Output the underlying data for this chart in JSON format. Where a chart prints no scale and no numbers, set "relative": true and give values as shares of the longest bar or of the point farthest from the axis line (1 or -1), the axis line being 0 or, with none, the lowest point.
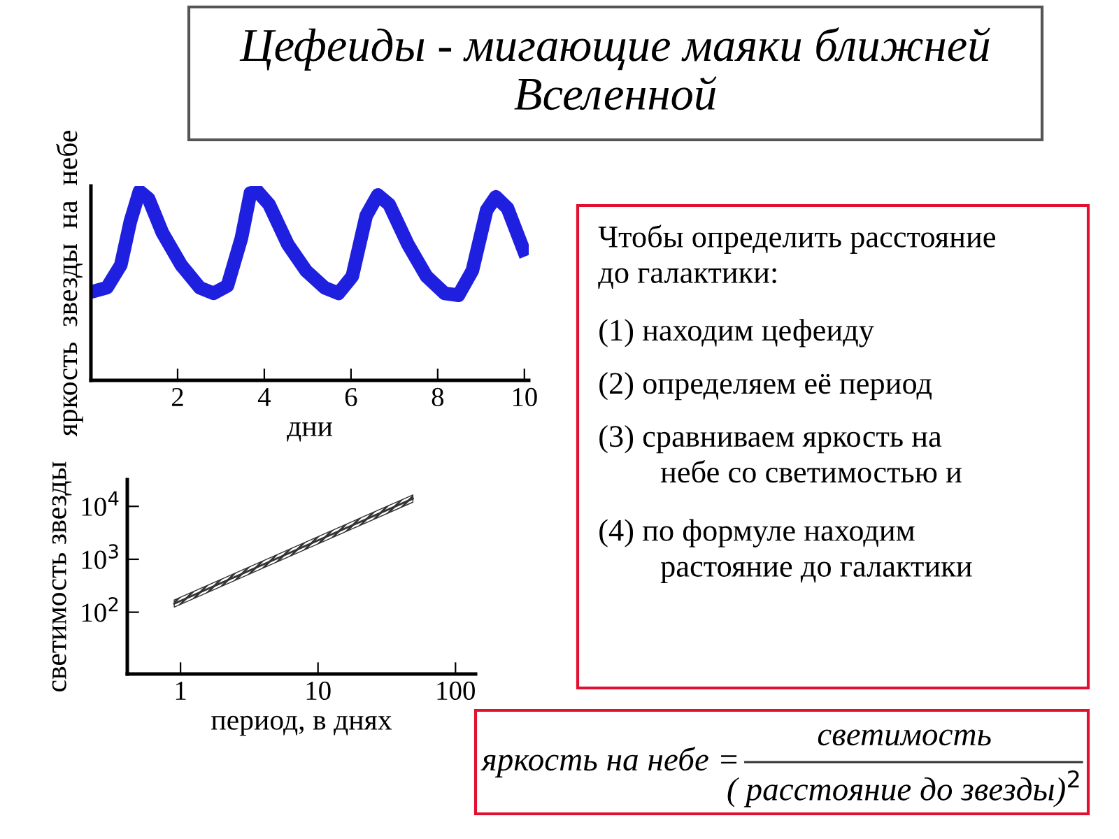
{
  "chart_data": [
    {
      "type": "other",
      "title": "Цефеиды - мигающие маяки ближней Вселенной"
    },
    {
      "type": "line",
      "relative": true,
      "xlabel": "дни",
      "ylabel": "яркость  звезды  на  небе",
      "x": [
        0.05,
        0.37,
        0.69,
        0.91,
        1.12,
        1.33,
        1.65,
        2.08,
        2.51,
        2.83,
        3.15,
        3.47,
        3.68,
        3.84,
        4.11,
        4.54,
        4.96,
        5.39,
        5.71,
        6.03,
        6.35,
        6.62,
        6.88,
        7.31,
        7.74,
        8.16,
        8.48,
        8.8,
        9.13,
        9.34,
        9.61,
        9.98
      ],
      "series": [
        {
          "color": "#1f1fe0",
          "values": [
            0.47,
            0.49,
            0.61,
            0.84,
            1.0,
            0.96,
            0.78,
            0.61,
            0.49,
            0.46,
            0.5,
            0.75,
            0.99,
            1.0,
            0.93,
            0.72,
            0.58,
            0.49,
            0.46,
            0.55,
            0.87,
            0.98,
            0.93,
            0.72,
            0.55,
            0.46,
            0.45,
            0.58,
            0.9,
            0.97,
            0.91,
            0.69
          ]
        }
      ],
      "xlim": [
        0,
        10.1
      ],
      "xticks": [
        2,
        4,
        6,
        8,
        10
      ],
      "grid": false,
      "marker": "none",
      "line_style": "solid"
    },
    {
      "type": "line",
      "log": "xy",
      "xlabel": "период, в днях",
      "ylabel": "светимость звезды",
      "x": [
        0.9,
        49
      ],
      "series": [
        {
          "color": "#333333",
          "values": [
            145,
            14000
          ],
          "lower": [
            125,
            12000
          ],
          "upper": [
            170,
            16500
          ]
        }
      ],
      "xlim": [
        0.41,
        140
      ],
      "ylim": [
        6.8,
        32000
      ],
      "xticks": [
        1,
        10,
        100
      ],
      "yticks": [
        {
          "value": 100,
          "label": "10$^{2}$"
        },
        {
          "value": 1000,
          "label": "10$^{3}$"
        },
        {
          "value": 10000,
          "label": "10$^{4}$"
        }
      ],
      "grid": false,
      "marker": "none",
      "line_style": "solid"
    },
    {
      "type": "other",
      "annotations": [
        "Чтобы определить расстояние\nдо галактики:",
        "(1) находим цефеиду",
        "(2) определяем её период",
        "(3) сравниваем яркость на\n        небе со светимостью и",
        "(4) по формуле находим\n        растояние до галактики"
      ]
    },
    {
      "type": "other",
      "annotations": [
        "яркость на небе =",
        "светимость",
        "( расстояние до звезды)$^{2}$"
      ]
    }
  ]
}
